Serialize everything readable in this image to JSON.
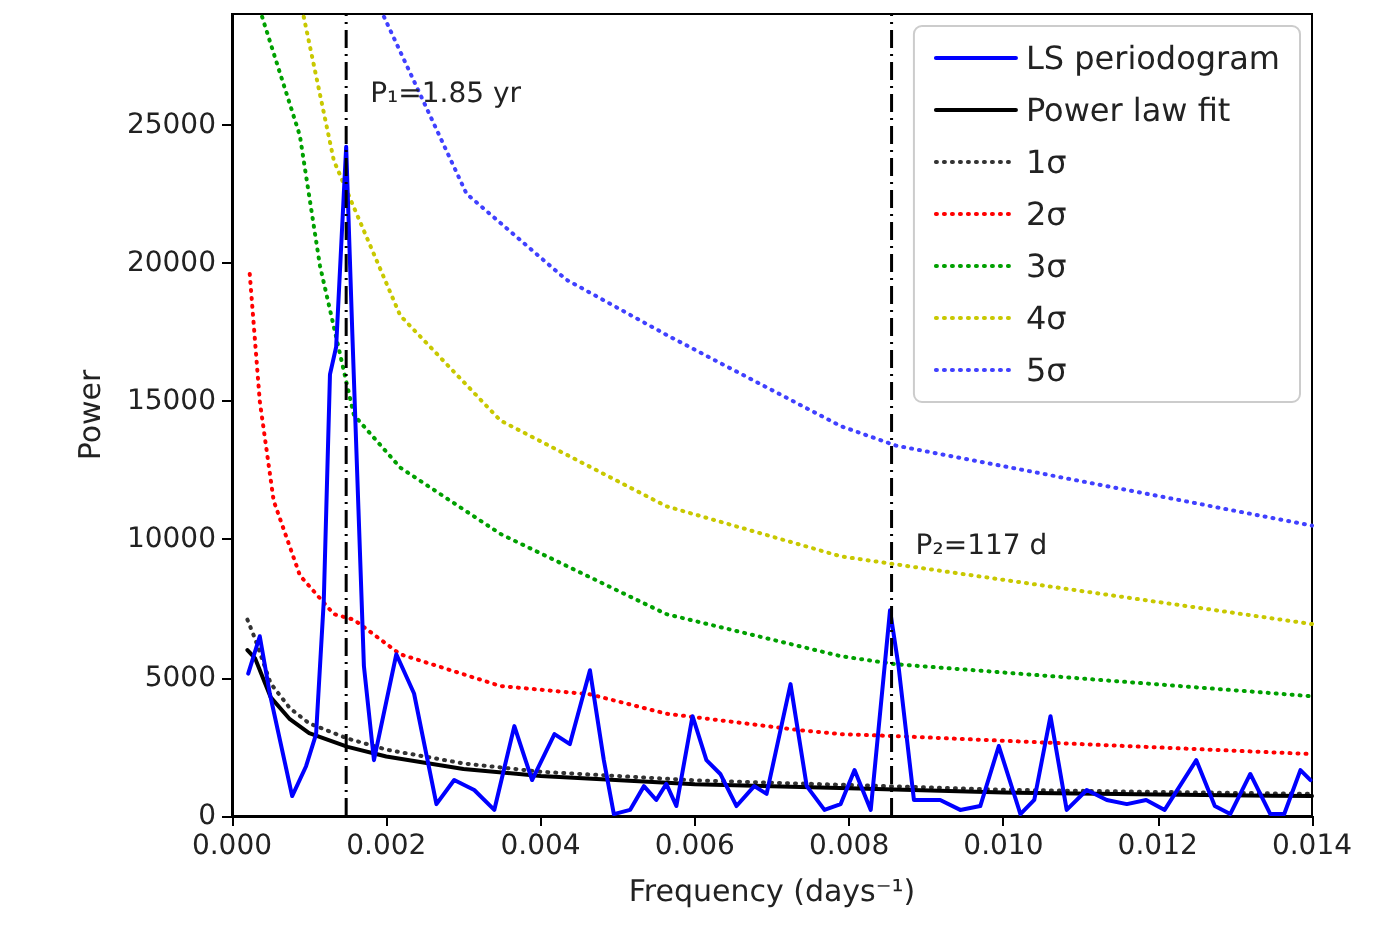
{
  "chart_data": {
    "type": "line",
    "xlabel": "Frequency (days⁻¹)",
    "ylabel": "Power",
    "xlim": [
      0,
      0.014
    ],
    "ylim": [
      0,
      29000
    ],
    "xticks": [
      {
        "value": 0,
        "label": "0.000"
      },
      {
        "value": 0.002,
        "label": "0.002"
      },
      {
        "value": 0.004,
        "label": "0.004"
      },
      {
        "value": 0.006,
        "label": "0.006"
      },
      {
        "value": 0.008,
        "label": "0.008"
      },
      {
        "value": 0.01,
        "label": "0.010"
      },
      {
        "value": 0.012,
        "label": "0.012"
      },
      {
        "value": 0.014,
        "label": "0.014"
      }
    ],
    "yticks": [
      0,
      5000,
      10000,
      15000,
      20000,
      25000
    ],
    "grid": false,
    "legend": "top right",
    "marker": "none",
    "series": [
      {
        "name": "LS periodogram",
        "color": "#0000ff",
        "line_style": "solid",
        "x": [
          0.00021,
          0.00036,
          0.00049,
          0.00078,
          0.00096,
          0.00109,
          0.00119,
          0.00127,
          0.00135,
          0.00148,
          0.00156,
          0.00171,
          0.00184,
          0.00213,
          0.00236,
          0.00265,
          0.00288,
          0.00314,
          0.0034,
          0.00366,
          0.00389,
          0.00418,
          0.00438,
          0.00464,
          0.00482,
          0.00495,
          0.00516,
          0.00534,
          0.0055,
          0.00563,
          0.00576,
          0.00597,
          0.00615,
          0.00633,
          0.00654,
          0.00677,
          0.00693,
          0.00724,
          0.00745,
          0.00768,
          0.00789,
          0.00807,
          0.00828,
          0.00853,
          0.00864,
          0.00884,
          0.00918,
          0.00944,
          0.0097,
          0.00994,
          0.01022,
          0.0104,
          0.01061,
          0.01082,
          0.01108,
          0.01134,
          0.0116,
          0.01185,
          0.01209,
          0.0125,
          0.01274,
          0.01294,
          0.0132,
          0.01346,
          0.01364,
          0.01385,
          0.01398
        ],
        "values": [
          5150,
          6500,
          4430,
          720,
          1800,
          2960,
          7800,
          15970,
          16960,
          24200,
          17430,
          5420,
          2020,
          5850,
          4430,
          430,
          1300,
          940,
          220,
          3250,
          1300,
          2960,
          2600,
          5270,
          2020,
          70,
          220,
          1080,
          580,
          1160,
          360,
          3610,
          2020,
          1520,
          360,
          1080,
          800,
          4770,
          1080,
          220,
          430,
          1660,
          220,
          7440,
          5420,
          580,
          580,
          220,
          360,
          2530,
          70,
          580,
          3610,
          220,
          940,
          580,
          430,
          580,
          220,
          2020,
          360,
          70,
          1520,
          70,
          70,
          1660,
          1300
        ]
      },
      {
        "name": "Power law fit",
        "color": "#000000",
        "line_style": "solid",
        "x": [
          0.0002,
          0.0003,
          0.0005,
          0.00075,
          0.001,
          0.0015,
          0.002,
          0.003,
          0.004,
          0.006,
          0.008,
          0.01,
          0.012,
          0.014
        ],
        "values": [
          6000,
          5700,
          4300,
          3500,
          3000,
          2500,
          2150,
          1700,
          1450,
          1150,
          1000,
          850,
          780,
          720
        ]
      },
      {
        "name": "1σ",
        "color": "#333333",
        "line_style": "dotted",
        "x": [
          0.0002,
          0.0003,
          0.0005,
          0.00075,
          0.001,
          0.0015,
          0.002,
          0.003,
          0.004,
          0.006,
          0.008,
          0.01,
          0.012,
          0.014
        ],
        "values": [
          7100,
          6400,
          4800,
          3900,
          3350,
          2800,
          2400,
          1900,
          1600,
          1290,
          1120,
          950,
          870,
          800
        ]
      },
      {
        "name": "2σ",
        "color": "#ff0000",
        "line_style": "dotted",
        "x": [
          0.00023,
          0.00036,
          0.00054,
          0.00088,
          0.00132,
          0.00158,
          0.00218,
          0.00348,
          0.00464,
          0.00563,
          0.00737,
          0.00789,
          0.0086,
          0.014
        ],
        "values": [
          19600,
          15000,
          11400,
          8700,
          7300,
          7100,
          5850,
          4700,
          4400,
          3700,
          3100,
          2960,
          2890,
          2240
        ]
      },
      {
        "name": "3σ",
        "color": "#00a000",
        "line_style": "dotted",
        "x": [
          0.00039,
          0.00088,
          0.00114,
          0.00158,
          0.00218,
          0.00348,
          0.00563,
          0.00789,
          0.0086,
          0.014
        ],
        "values": [
          28900,
          24600,
          19900,
          14500,
          12600,
          10200,
          7300,
          5780,
          5490,
          4330
        ]
      },
      {
        "name": "4σ",
        "color": "#c8c800",
        "line_style": "dotted",
        "x": [
          0.00093,
          0.00132,
          0.00218,
          0.00348,
          0.00563,
          0.00789,
          0.0086,
          0.014
        ],
        "values": [
          28900,
          23700,
          18100,
          14300,
          11200,
          9390,
          9100,
          6940
        ]
      },
      {
        "name": "5σ",
        "color": "#4040ff",
        "line_style": "dotted",
        "x": [
          0.00197,
          0.00304,
          0.00433,
          0.00563,
          0.00789,
          0.0086,
          0.014
        ],
        "values": [
          28900,
          22500,
          19400,
          17400,
          14100,
          13400,
          10500
        ]
      }
    ],
    "ref_lines": [
      {
        "axis": "x",
        "value": 0.00148,
        "color": "#000000",
        "line_style": "dashdot"
      },
      {
        "axis": "x",
        "value": 0.00855,
        "color": "#000000",
        "line_style": "dashdot"
      }
    ],
    "annotations": [
      "P₁=1.85 yr",
      "P₂=117 d"
    ]
  }
}
